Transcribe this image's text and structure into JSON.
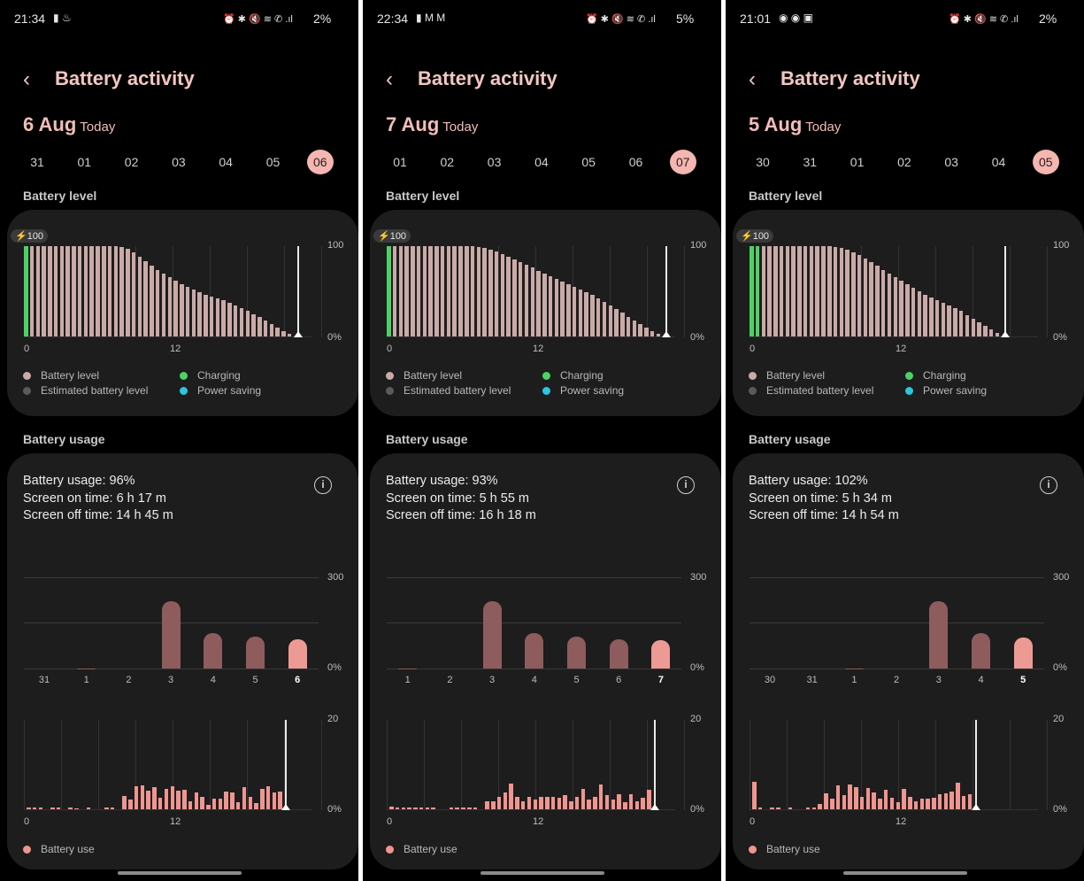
{
  "colors": {
    "title": "#f2c6c2",
    "battery_bar": "#c9aaa7",
    "charging": "#4cd264",
    "power_saving": "#2bc6e0",
    "estimated": "#5a5a5a",
    "usage_bar": "#f0958f",
    "daily_past": "#8e5c5c",
    "daily_current": "#ee9a94"
  },
  "common": {
    "title": "Battery activity",
    "today": "Today",
    "battery_level_label": "Battery level",
    "battery_usage_label": "Battery usage",
    "badge": "⚡100",
    "y_top": "100",
    "y_bottom": "0%",
    "x0": "0",
    "x12": "12",
    "legend": [
      "Battery level",
      "Estimated battery level",
      "Charging",
      "Power saving"
    ],
    "daily_y_top": "300",
    "daily_y_bottom": "0%",
    "hourly_y_top": "20",
    "hourly_y_bottom": "0%",
    "battery_use_legend": "Battery use"
  },
  "phones": [
    {
      "status_time": "21:34",
      "status_left_icons": "▮ ♨",
      "status_right_icons": "⏰ ✱ 🔇 ≋ ✆ .ıl",
      "status_battery": "2%",
      "date": "6 Aug",
      "days": [
        "31",
        "01",
        "02",
        "03",
        "04",
        "05",
        "06"
      ],
      "selected_day": 6,
      "usage": "Battery usage: 96%",
      "screen_on": "Screen on time: 6 h 17 m",
      "screen_off": "Screen off time: 14 h 45 m",
      "daily_labels": [
        "31",
        "1",
        "2",
        "3",
        "4",
        "5",
        "6"
      ],
      "daily_values": [
        0,
        0.5,
        0,
        220,
        116,
        105,
        96
      ],
      "charging_bars": 1,
      "level": [
        100,
        100,
        100,
        100,
        100,
        100,
        100,
        100,
        100,
        100,
        100,
        100,
        100,
        100,
        100,
        100,
        99,
        97,
        93,
        88,
        83,
        78,
        74,
        70,
        66,
        62,
        58,
        55,
        52,
        49,
        46,
        44,
        42,
        40,
        37,
        34,
        31,
        28,
        25,
        22,
        18,
        14,
        10,
        6,
        3
      ],
      "hourly": [
        0.3,
        0.3,
        0.3,
        0,
        0.4,
        0.3,
        0,
        0.3,
        0.2,
        0,
        0.4,
        0,
        0,
        0.3,
        0.3,
        0,
        2.9,
        2.2,
        5.1,
        5.3,
        4.1,
        4.9,
        2.6,
        4.6,
        5.1,
        4.1,
        4.3,
        1.8,
        3.8,
        2.8,
        1.0,
        2.3,
        2.3,
        4.0,
        3.7,
        1.5,
        4.9,
        2.8,
        1.4,
        4.6,
        5.2,
        3.8,
        4.0
      ]
    },
    {
      "status_time": "22:34",
      "status_left_icons": "▮ M M",
      "status_right_icons": "⏰ ✱ 🔇 ≋ ✆ .ıl",
      "status_battery": "5%",
      "date": "7 Aug",
      "days": [
        "01",
        "02",
        "03",
        "04",
        "05",
        "06",
        "07"
      ],
      "selected_day": 6,
      "usage": "Battery usage: 93%",
      "screen_on": "Screen on time: 5 h 55 m",
      "screen_off": "Screen off time: 16 h 18 m",
      "daily_labels": [
        "",
        "1",
        "2",
        "3",
        "4",
        "5",
        "6",
        "7"
      ],
      "daily_values": [
        0,
        0.5,
        0,
        220,
        116,
        105,
        96,
        93
      ],
      "charging_bars": 1,
      "level": [
        100,
        100,
        100,
        100,
        100,
        100,
        100,
        100,
        100,
        100,
        100,
        100,
        100,
        100,
        100,
        99,
        98,
        96,
        94,
        91,
        88,
        85,
        82,
        79,
        76,
        73,
        70,
        67,
        64,
        61,
        58,
        55,
        52,
        49,
        46,
        42,
        38,
        34,
        30,
        26,
        22,
        18,
        14,
        10,
        6,
        3
      ],
      "hourly": [
        0.6,
        0.3,
        0.3,
        0.3,
        0.3,
        0.3,
        0.3,
        0.3,
        0,
        0,
        0.3,
        0.3,
        0.3,
        0.3,
        0.3,
        0,
        1.8,
        1.8,
        2.8,
        3.8,
        5.8,
        2.8,
        1.8,
        2.8,
        2.2,
        2.8,
        2.8,
        2.8,
        2.6,
        3.2,
        1.8,
        2.8,
        4.6,
        2.2,
        2.8,
        5.6,
        3.2,
        2.2,
        3.4,
        1.6,
        3.4,
        1.8,
        2.6,
        4.4
      ]
    },
    {
      "status_time": "21:01",
      "status_left_icons": "◉ ◉ ▣",
      "status_right_icons": "⏰ ✱ 🔇 ≋ ✆ .ıl",
      "status_battery": "2%",
      "date": "5 Aug",
      "days": [
        "30",
        "31",
        "01",
        "02",
        "03",
        "04",
        "05"
      ],
      "selected_day": 6,
      "usage": "Battery usage: 102%",
      "screen_on": "Screen on time: 5 h 34 m",
      "screen_off": "Screen off time: 14 h 54 m",
      "daily_labels": [
        "30",
        "31",
        "1",
        "2",
        "3",
        "4",
        "5"
      ],
      "daily_values": [
        0,
        0,
        0.5,
        0,
        220,
        116,
        102
      ],
      "charging_bars": 2,
      "level": [
        100,
        100,
        100,
        100,
        100,
        100,
        100,
        100,
        100,
        100,
        100,
        100,
        100,
        100,
        99,
        98,
        96,
        93,
        90,
        86,
        82,
        78,
        74,
        70,
        66,
        62,
        58,
        54,
        50,
        46,
        43,
        40,
        37,
        34,
        31,
        28,
        24,
        20,
        16,
        12,
        8,
        4
      ],
      "hourly": [
        6.2,
        0.4,
        0,
        0.3,
        0.3,
        0,
        0.3,
        0,
        0,
        0.3,
        0.3,
        1.2,
        3.6,
        2.4,
        5.4,
        3.2,
        5.6,
        5.0,
        2.8,
        4.8,
        3.8,
        2.4,
        4.4,
        2.6,
        1.6,
        4.6,
        2.8,
        1.8,
        2.4,
        2.4,
        2.6,
        3.4,
        3.6,
        4.0,
        6.0,
        3.0,
        3.4
      ]
    }
  ]
}
